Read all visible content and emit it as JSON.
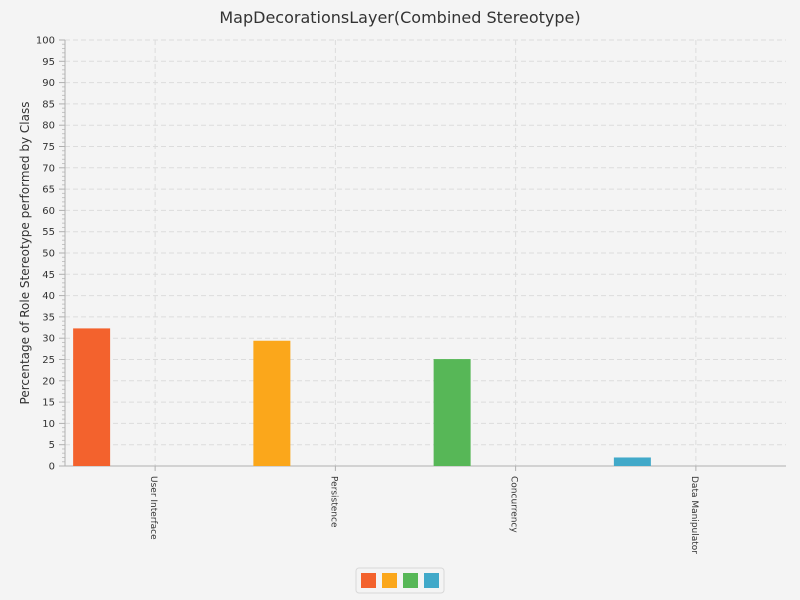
{
  "chart_data": {
    "type": "bar",
    "title": "MapDecorationsLayer(Combined Stereotype)",
    "xlabel": "",
    "ylabel": "Percentage of Role Stereotype performed by Class",
    "ylim": [
      0,
      100
    ],
    "y_major_step": 5,
    "y_minor_step": 1,
    "grid": true,
    "legend_position": "bottom-center",
    "categories": [
      "User Interface",
      "Persistence",
      "Concurrency",
      "Data Manipulator"
    ],
    "values": [
      32.3,
      29.4,
      25.1,
      2.0
    ],
    "colors": [
      "#f3622d",
      "#fba71b",
      "#57b757",
      "#41a9c9"
    ]
  }
}
